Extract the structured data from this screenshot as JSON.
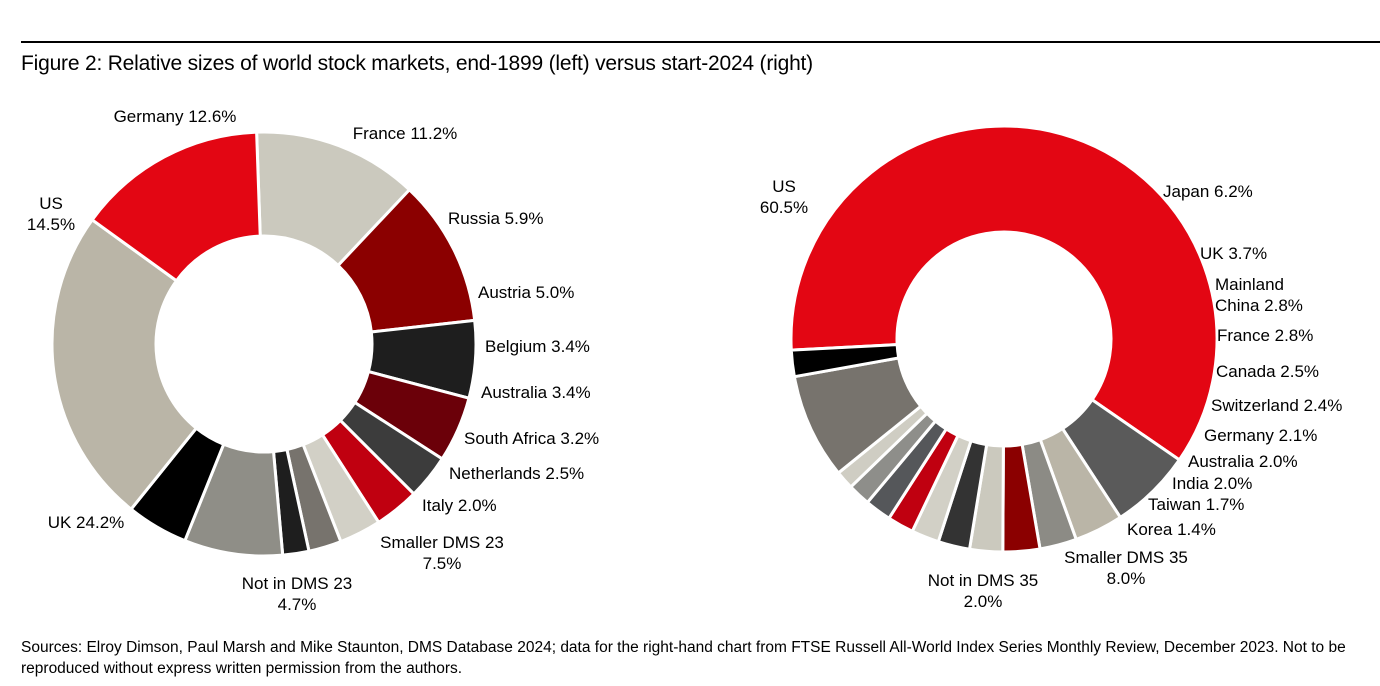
{
  "figure": {
    "title": "Figure 2: Relative sizes of world stock markets, end-1899 (left) versus start-2024 (right)",
    "source": "Sources: Elroy Dimson, Paul Marsh and Mike Staunton, DMS Database 2024; data for the right-hand chart from FTSE Russell All-World Index Series Monthly Review, December 2023. Not to be reproduced without express written permission from the authors."
  },
  "chart_data": [
    {
      "type": "pie",
      "title": "",
      "donut": true,
      "start_category": "Germany",
      "direction": "clockwise",
      "slices": [
        {
          "name": "Germany",
          "value": 12.6,
          "label": [
            "Germany 12.6%"
          ],
          "color": "#CBC9BE"
        },
        {
          "name": "France",
          "value": 11.2,
          "label": [
            "France 11.2%"
          ],
          "color": "#8B0000"
        },
        {
          "name": "Russia",
          "value": 5.9,
          "label": [
            "Russia 5.9%"
          ],
          "color": "#1E1E1E"
        },
        {
          "name": "Austria",
          "value": 5.0,
          "label": [
            "Austria 5.0%"
          ],
          "color": "#6B0009"
        },
        {
          "name": "Belgium",
          "value": 3.4,
          "label": [
            "Belgium 3.4%"
          ],
          "color": "#3C3C3C"
        },
        {
          "name": "Australia",
          "value": 3.4,
          "label": [
            "Australia 3.4%"
          ],
          "color": "#C00010"
        },
        {
          "name": "South Africa",
          "value": 3.2,
          "label": [
            "South Africa 3.2%"
          ],
          "color": "#D2D0C6"
        },
        {
          "name": "Netherlands",
          "value": 2.5,
          "label": [
            "Netherlands 2.5%"
          ],
          "color": "#77736D"
        },
        {
          "name": "Italy",
          "value": 2.0,
          "label": [
            "Italy 2.0%"
          ],
          "color": "#1E1E1E"
        },
        {
          "name": "Smaller DMS 23",
          "value": 7.5,
          "label": [
            "Smaller DMS 23",
            "7.5%"
          ],
          "color": "#8F8E87"
        },
        {
          "name": "Not in DMS 23",
          "value": 4.7,
          "label": [
            "Not in DMS 23",
            "4.7%"
          ],
          "color": "#000000"
        },
        {
          "name": "UK",
          "value": 24.2,
          "label": [
            "UK 24.2%"
          ],
          "color": "#BAB5A7"
        },
        {
          "name": "US",
          "value": 14.5,
          "label": [
            "US",
            "14.5%"
          ],
          "color": "#E30613"
        }
      ]
    },
    {
      "type": "pie",
      "title": "",
      "donut": true,
      "start_category": "US",
      "direction": "clockwise",
      "slices": [
        {
          "name": "US",
          "value": 60.5,
          "label": [
            "US",
            "60.5%"
          ],
          "color": "#E30613"
        },
        {
          "name": "Japan",
          "value": 6.2,
          "label": [
            "Japan 6.2%"
          ],
          "color": "#5A5A5A"
        },
        {
          "name": "UK",
          "value": 3.7,
          "label": [
            "UK 3.7%"
          ],
          "color": "#BAB5A7"
        },
        {
          "name": "Mainland China",
          "value": 2.8,
          "label": [
            "Mainland",
            "China 2.8%"
          ],
          "color": "#8C8B85"
        },
        {
          "name": "France",
          "value": 2.8,
          "label": [
            "France 2.8%"
          ],
          "color": "#8B0000"
        },
        {
          "name": "Canada",
          "value": 2.5,
          "label": [
            "Canada 2.5%"
          ],
          "color": "#CBC9BE"
        },
        {
          "name": "Switzerland",
          "value": 2.4,
          "label": [
            "Switzerland 2.4%"
          ],
          "color": "#333333"
        },
        {
          "name": "Germany",
          "value": 2.1,
          "label": [
            "Germany 2.1%"
          ],
          "color": "#D2D0C6"
        },
        {
          "name": "Australia",
          "value": 2.0,
          "label": [
            "Australia 2.0%"
          ],
          "color": "#C00010"
        },
        {
          "name": "India",
          "value": 2.0,
          "label": [
            "India 2.0%"
          ],
          "color": "#55575A"
        },
        {
          "name": "Taiwan",
          "value": 1.7,
          "label": [
            "Taiwan 1.7%"
          ],
          "color": "#8E8E8A"
        },
        {
          "name": "Korea",
          "value": 1.4,
          "label": [
            "Korea 1.4%"
          ],
          "color": "#CFCDC3"
        },
        {
          "name": "Smaller DMS 35",
          "value": 8.0,
          "label": [
            "Smaller DMS 35",
            "8.0%"
          ],
          "color": "#77736D"
        },
        {
          "name": "Not in DMS 35",
          "value": 2.0,
          "label": [
            "Not in DMS 35",
            "2.0%"
          ],
          "color": "#000000"
        }
      ]
    }
  ]
}
